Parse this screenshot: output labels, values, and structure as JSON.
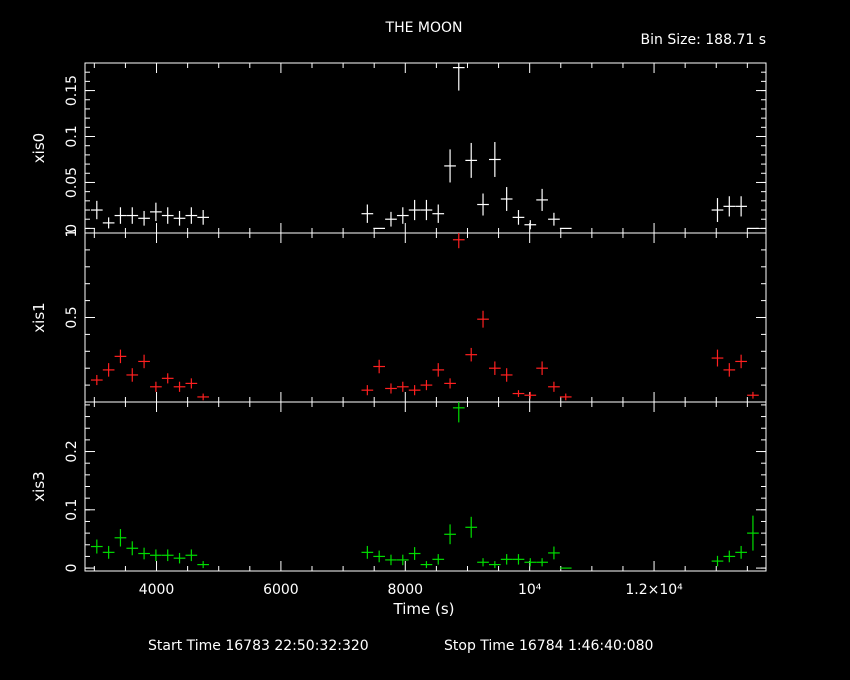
{
  "header": {
    "title": "THE MOON",
    "bin_size": "Bin Size: 188.71 s"
  },
  "footer": {
    "start_time": "Start Time 16783 22:50:32:320",
    "stop_time": "Stop Time 16784  1:46:40:080"
  },
  "colors": {
    "background": "#000000",
    "axes": "#ffffff",
    "xis0": "#ffffff",
    "xis1": "#ff2020",
    "xis3": "#00dd00"
  },
  "chart_data": {
    "type": "scatter",
    "xlabel": "Time (s)",
    "xlim": [
      2850,
      13800
    ],
    "x_ticks": [
      {
        "value": 4000,
        "label": "4000"
      },
      {
        "value": 6000,
        "label": "6000"
      },
      {
        "value": 8000,
        "label": "8000"
      },
      {
        "value": 10000,
        "label": "10⁴"
      },
      {
        "value": 12000,
        "label": "1.2×10⁴"
      }
    ],
    "x_halfwidth": 94,
    "panels": [
      {
        "ylabel": "xis0",
        "color": "#ffffff",
        "ylim": [
          -0.005,
          0.18
        ],
        "y_ticks": [
          {
            "value": 0,
            "label": "0"
          },
          {
            "value": 0.05,
            "label": "0.05"
          },
          {
            "value": 0.1,
            "label": "0.1"
          },
          {
            "value": 0.15,
            "label": "0.15"
          }
        ],
        "points": [
          {
            "x": 3040,
            "y": 0.02,
            "e": 0.01
          },
          {
            "x": 3230,
            "y": 0.006,
            "e": 0.006
          },
          {
            "x": 3420,
            "y": 0.014,
            "e": 0.009
          },
          {
            "x": 3610,
            "y": 0.014,
            "e": 0.009
          },
          {
            "x": 3800,
            "y": 0.011,
            "e": 0.008
          },
          {
            "x": 3990,
            "y": 0.018,
            "e": 0.01
          },
          {
            "x": 4180,
            "y": 0.014,
            "e": 0.009
          },
          {
            "x": 4370,
            "y": 0.011,
            "e": 0.008
          },
          {
            "x": 4560,
            "y": 0.014,
            "e": 0.009
          },
          {
            "x": 4750,
            "y": 0.012,
            "e": 0.008
          },
          {
            "x": 7390,
            "y": 0.016,
            "e": 0.01
          },
          {
            "x": 7580,
            "y": 0.0,
            "e": 0.0
          },
          {
            "x": 7770,
            "y": 0.01,
            "e": 0.008
          },
          {
            "x": 7960,
            "y": 0.014,
            "e": 0.009
          },
          {
            "x": 8150,
            "y": 0.02,
            "e": 0.011
          },
          {
            "x": 8340,
            "y": 0.02,
            "e": 0.011
          },
          {
            "x": 8530,
            "y": 0.016,
            "e": 0.01
          },
          {
            "x": 8720,
            "y": 0.068,
            "e": 0.018
          },
          {
            "x": 8860,
            "y": 0.175,
            "e": 0.025
          },
          {
            "x": 9060,
            "y": 0.074,
            "e": 0.019
          },
          {
            "x": 9250,
            "y": 0.026,
            "e": 0.012
          },
          {
            "x": 9440,
            "y": 0.075,
            "e": 0.019
          },
          {
            "x": 9630,
            "y": 0.032,
            "e": 0.013
          },
          {
            "x": 9820,
            "y": 0.012,
            "e": 0.008
          },
          {
            "x": 10010,
            "y": 0.004,
            "e": 0.005
          },
          {
            "x": 10200,
            "y": 0.031,
            "e": 0.012
          },
          {
            "x": 10390,
            "y": 0.01,
            "e": 0.007
          },
          {
            "x": 10580,
            "y": 0.0,
            "e": 0.0
          },
          {
            "x": 13020,
            "y": 0.02,
            "e": 0.013
          },
          {
            "x": 13210,
            "y": 0.024,
            "e": 0.011
          },
          {
            "x": 13400,
            "y": 0.024,
            "e": 0.011
          },
          {
            "x": 13590,
            "y": 0.0,
            "e": 0.0
          }
        ]
      },
      {
        "ylabel": "xis1",
        "color": "#ff2020",
        "ylim": [
          0,
          1.0
        ],
        "y_ticks": [
          {
            "value": 0.5,
            "label": "0.5"
          },
          {
            "value": 1.0,
            "label": "1"
          }
        ],
        "points": [
          {
            "x": 3040,
            "y": 0.13,
            "e": 0.03
          },
          {
            "x": 3230,
            "y": 0.19,
            "e": 0.04
          },
          {
            "x": 3420,
            "y": 0.27,
            "e": 0.04
          },
          {
            "x": 3610,
            "y": 0.16,
            "e": 0.04
          },
          {
            "x": 3800,
            "y": 0.24,
            "e": 0.04
          },
          {
            "x": 3990,
            "y": 0.09,
            "e": 0.03
          },
          {
            "x": 4180,
            "y": 0.14,
            "e": 0.03
          },
          {
            "x": 4370,
            "y": 0.09,
            "e": 0.03
          },
          {
            "x": 4560,
            "y": 0.11,
            "e": 0.03
          },
          {
            "x": 4750,
            "y": 0.03,
            "e": 0.02
          },
          {
            "x": 7390,
            "y": 0.07,
            "e": 0.03
          },
          {
            "x": 7580,
            "y": 0.21,
            "e": 0.04
          },
          {
            "x": 7770,
            "y": 0.08,
            "e": 0.03
          },
          {
            "x": 7960,
            "y": 0.09,
            "e": 0.03
          },
          {
            "x": 8150,
            "y": 0.07,
            "e": 0.03
          },
          {
            "x": 8340,
            "y": 0.1,
            "e": 0.03
          },
          {
            "x": 8530,
            "y": 0.19,
            "e": 0.04
          },
          {
            "x": 8720,
            "y": 0.11,
            "e": 0.03
          },
          {
            "x": 8860,
            "y": 0.96,
            "e": 0.05
          },
          {
            "x": 9060,
            "y": 0.28,
            "e": 0.04
          },
          {
            "x": 9250,
            "y": 0.49,
            "e": 0.05
          },
          {
            "x": 9440,
            "y": 0.2,
            "e": 0.04
          },
          {
            "x": 9630,
            "y": 0.16,
            "e": 0.04
          },
          {
            "x": 9820,
            "y": 0.05,
            "e": 0.02
          },
          {
            "x": 10010,
            "y": 0.04,
            "e": 0.02
          },
          {
            "x": 10200,
            "y": 0.2,
            "e": 0.04
          },
          {
            "x": 10390,
            "y": 0.09,
            "e": 0.03
          },
          {
            "x": 10580,
            "y": 0.03,
            "e": 0.02
          },
          {
            "x": 13020,
            "y": 0.26,
            "e": 0.05
          },
          {
            "x": 13210,
            "y": 0.19,
            "e": 0.04
          },
          {
            "x": 13400,
            "y": 0.24,
            "e": 0.04
          },
          {
            "x": 13590,
            "y": 0.04,
            "e": 0.02
          }
        ]
      },
      {
        "ylabel": "xis3",
        "color": "#00dd00",
        "ylim": [
          -0.005,
          0.285
        ],
        "y_ticks": [
          {
            "value": 0,
            "label": "0"
          },
          {
            "value": 0.1,
            "label": "0.1"
          },
          {
            "value": 0.2,
            "label": "0.2"
          }
        ],
        "points": [
          {
            "x": 3040,
            "y": 0.037,
            "e": 0.012
          },
          {
            "x": 3230,
            "y": 0.027,
            "e": 0.011
          },
          {
            "x": 3420,
            "y": 0.052,
            "e": 0.015
          },
          {
            "x": 3610,
            "y": 0.034,
            "e": 0.012
          },
          {
            "x": 3800,
            "y": 0.025,
            "e": 0.01
          },
          {
            "x": 3990,
            "y": 0.022,
            "e": 0.01
          },
          {
            "x": 4180,
            "y": 0.022,
            "e": 0.01
          },
          {
            "x": 4370,
            "y": 0.017,
            "e": 0.009
          },
          {
            "x": 4560,
            "y": 0.022,
            "e": 0.01
          },
          {
            "x": 4750,
            "y": 0.006,
            "e": 0.006
          },
          {
            "x": 7390,
            "y": 0.027,
            "e": 0.011
          },
          {
            "x": 7580,
            "y": 0.02,
            "e": 0.01
          },
          {
            "x": 7770,
            "y": 0.014,
            "e": 0.009
          },
          {
            "x": 7960,
            "y": 0.014,
            "e": 0.009
          },
          {
            "x": 8150,
            "y": 0.025,
            "e": 0.011
          },
          {
            "x": 8340,
            "y": 0.006,
            "e": 0.006
          },
          {
            "x": 8530,
            "y": 0.015,
            "e": 0.009
          },
          {
            "x": 8720,
            "y": 0.058,
            "e": 0.017
          },
          {
            "x": 8860,
            "y": 0.275,
            "e": 0.025
          },
          {
            "x": 9060,
            "y": 0.07,
            "e": 0.018
          },
          {
            "x": 9250,
            "y": 0.01,
            "e": 0.007
          },
          {
            "x": 9440,
            "y": 0.006,
            "e": 0.006
          },
          {
            "x": 9630,
            "y": 0.015,
            "e": 0.009
          },
          {
            "x": 9820,
            "y": 0.015,
            "e": 0.009
          },
          {
            "x": 10010,
            "y": 0.01,
            "e": 0.007
          },
          {
            "x": 10200,
            "y": 0.01,
            "e": 0.007
          },
          {
            "x": 10390,
            "y": 0.026,
            "e": 0.011
          },
          {
            "x": 10580,
            "y": 0.0,
            "e": 0.0
          },
          {
            "x": 13020,
            "y": 0.012,
            "e": 0.009
          },
          {
            "x": 13210,
            "y": 0.02,
            "e": 0.01
          },
          {
            "x": 13400,
            "y": 0.027,
            "e": 0.011
          },
          {
            "x": 13590,
            "y": 0.06,
            "e": 0.03
          }
        ]
      }
    ]
  }
}
